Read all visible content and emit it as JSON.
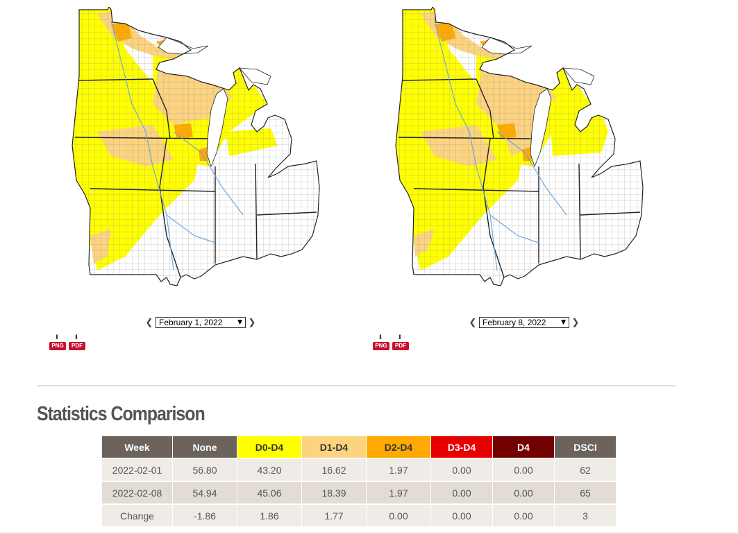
{
  "colors": {
    "none": "#ffffff",
    "d0": "#ffff00",
    "d1": "#fcd37f",
    "d2": "#ffaa00",
    "d3": "#e60000",
    "d4": "#730000",
    "header_dark": "#6b635c",
    "water": "#6fa8dc"
  },
  "maps": [
    {
      "date": "February 1, 2022",
      "download_png": "PNG",
      "download_pdf": "PDF"
    },
    {
      "date": "February 8, 2022",
      "download_png": "PNG",
      "download_pdf": "PDF"
    }
  ],
  "stats": {
    "title": "Statistics Comparison",
    "columns": [
      "Week",
      "None",
      "D0-D4",
      "D1-D4",
      "D2-D4",
      "D3-D4",
      "D4",
      "DSCI"
    ],
    "rows": [
      [
        "2022-02-01",
        "56.80",
        "43.20",
        "16.62",
        "1.97",
        "0.00",
        "0.00",
        "62"
      ],
      [
        "2022-02-08",
        "54.94",
        "45.06",
        "18.39",
        "1.97",
        "0.00",
        "0.00",
        "65"
      ],
      [
        "Change",
        "-1.86",
        "1.86",
        "1.77",
        "0.00",
        "0.00",
        "0.00",
        "3"
      ]
    ]
  }
}
